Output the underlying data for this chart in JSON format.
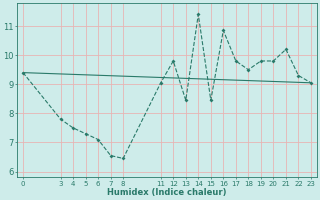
{
  "xlabel": "Humidex (Indice chaleur)",
  "bg_color": "#ceecea",
  "grid_color": "#e8b4b4",
  "line_color": "#2a7a6a",
  "line1_x": [
    0,
    3,
    4,
    5,
    6,
    7,
    8,
    11,
    12,
    13,
    14,
    15,
    16,
    17,
    18,
    19,
    20,
    21,
    22,
    23
  ],
  "line1_y": [
    9.4,
    7.8,
    7.5,
    7.3,
    7.1,
    6.55,
    6.45,
    9.05,
    9.8,
    8.45,
    11.4,
    8.45,
    10.85,
    9.8,
    9.5,
    9.8,
    9.8,
    10.2,
    9.3,
    9.05
  ],
  "line2_x": [
    0,
    23
  ],
  "line2_y": [
    9.4,
    9.05
  ],
  "xlim": [
    -0.5,
    23.5
  ],
  "ylim": [
    5.8,
    11.8
  ],
  "yticks": [
    6,
    7,
    8,
    9,
    10,
    11
  ],
  "xticks": [
    0,
    3,
    4,
    5,
    6,
    7,
    8,
    11,
    12,
    13,
    14,
    15,
    16,
    17,
    18,
    19,
    20,
    21,
    22,
    23
  ],
  "tick_fontsize": 5,
  "label_fontsize": 6,
  "linewidth": 0.8,
  "markersize": 2.0
}
